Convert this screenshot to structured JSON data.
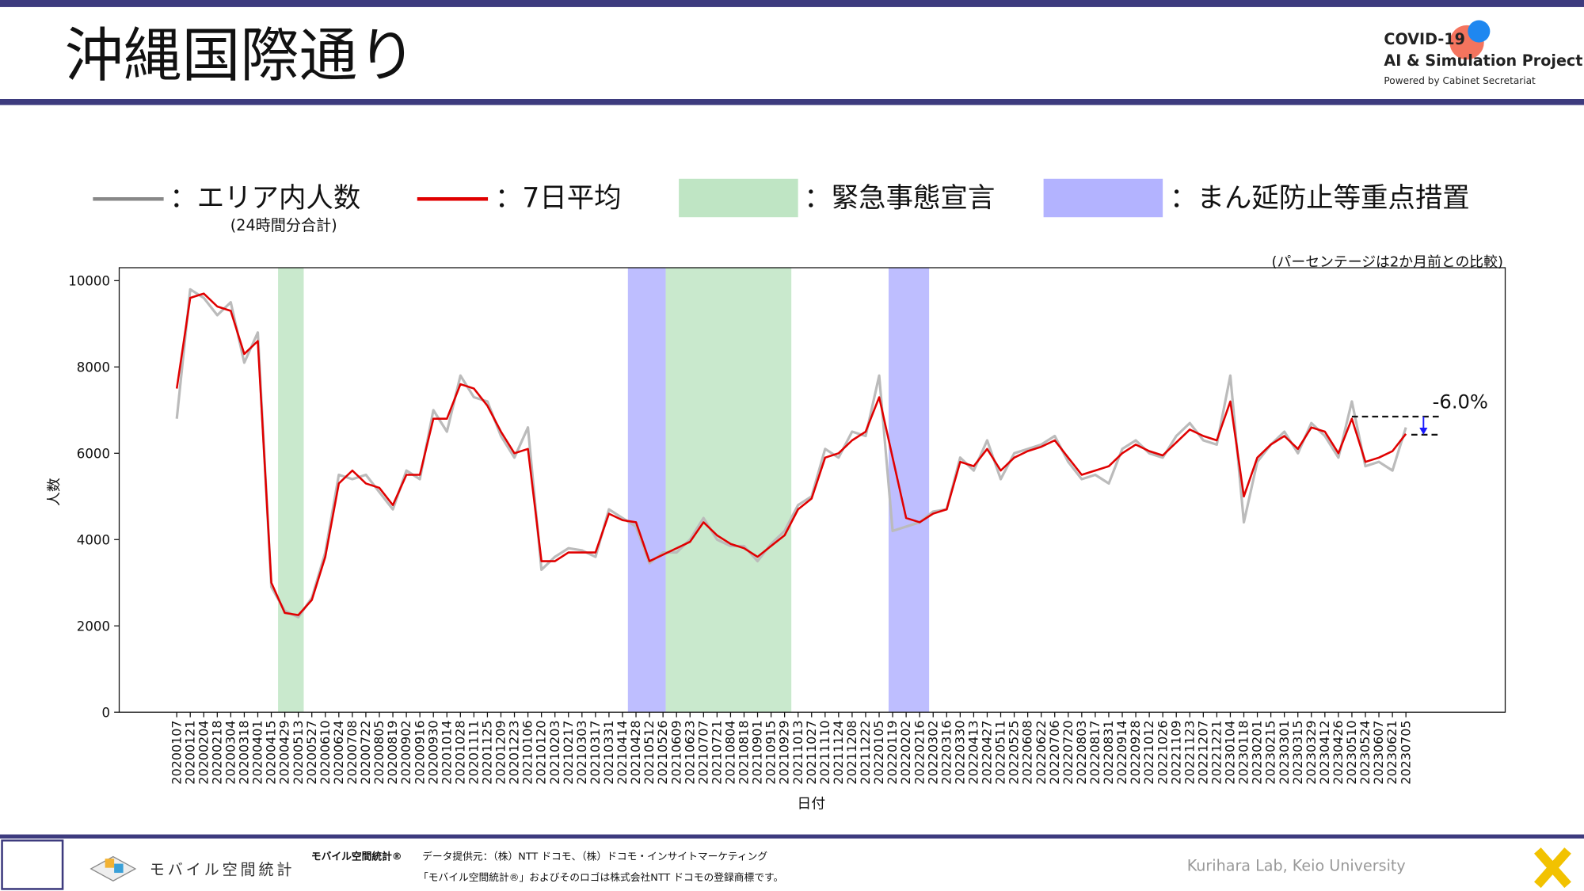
{
  "header": {
    "title": "沖縄国際通り",
    "logo": {
      "line1": "COVID-19",
      "line2": "AI & Simulation Project",
      "line3": "Powered by Cabinet Secretariat"
    }
  },
  "footer": {
    "brand": "モバイル空間統計",
    "brand_bold": "モバイル空間統計®",
    "source": "データ提供元：（株）NTT ドコモ、（株）ドコモ・インサイトマーケティング",
    "trademark": "「モバイル空間統計®」およびそのロゴは株式会社NTT ドコモの登録商標です。",
    "credit": "Kurihara Lab, Keio University"
  },
  "chart_data": {
    "type": "line",
    "note": "(パーセンテージは2か月前との比較)",
    "x_label": "日付",
    "y_label": "人数",
    "legend_sub": "(24時間分合計)",
    "categories": [
      "20200107",
      "20200121",
      "20200204",
      "20200218",
      "20200304",
      "20200318",
      "20200401",
      "20200415",
      "20200429",
      "20200513",
      "20200527",
      "20200610",
      "20200624",
      "20200708",
      "20200722",
      "20200805",
      "20200819",
      "20200902",
      "20200916",
      "20200930",
      "20201014",
      "20201028",
      "20201111",
      "20201125",
      "20201209",
      "20201223",
      "20210106",
      "20210120",
      "20210203",
      "20210217",
      "20210303",
      "20210317",
      "20210331",
      "20210414",
      "20210428",
      "20210512",
      "20210526",
      "20210609",
      "20210623",
      "20210707",
      "20210721",
      "20210804",
      "20210818",
      "20210901",
      "20210915",
      "20210929",
      "20211013",
      "20211027",
      "20211110",
      "20211124",
      "20211208",
      "20211222",
      "20220105",
      "20220119",
      "20220202",
      "20220216",
      "20220302",
      "20220316",
      "20220330",
      "20220413",
      "20220427",
      "20220511",
      "20220525",
      "20220608",
      "20220622",
      "20220706",
      "20220720",
      "20220803",
      "20220817",
      "20220831",
      "20220914",
      "20220928",
      "20221012",
      "20221026",
      "20221109",
      "20221123",
      "20221207",
      "20221221",
      "20230104",
      "20230118",
      "20230201",
      "20230215",
      "20230301",
      "20230315",
      "20230329",
      "20230412",
      "20230426",
      "20230510",
      "20230524",
      "20230607",
      "20230621",
      "20230705"
    ],
    "series": [
      {
        "name": "：エリア内人数",
        "color": "#bbbbbb",
        "legend_color": "#888888",
        "values": [
          6800,
          9800,
          9600,
          9200,
          9500,
          8100,
          8800,
          2900,
          2350,
          2200,
          2650,
          3700,
          5500,
          5400,
          5500,
          5100,
          4700,
          5600,
          5400,
          7000,
          6500,
          7800,
          7300,
          7200,
          6400,
          5900,
          6600,
          3300,
          3600,
          3800,
          3750,
          3600,
          4700,
          4500,
          4300,
          3450,
          3700,
          3700,
          4000,
          4500,
          4000,
          3850,
          3850,
          3500,
          3900,
          4200,
          4800,
          5000,
          6100,
          5900,
          6500,
          6400,
          7800,
          4200,
          4300,
          4400,
          4650,
          4700,
          5900,
          5600,
          6300,
          5400,
          6000,
          6100,
          6200,
          6400,
          5800,
          5400,
          5500,
          5300,
          6100,
          6300,
          6000,
          5900,
          6400,
          6700,
          6300,
          6200,
          7800,
          4400,
          5800,
          6200,
          6500,
          6000,
          6700,
          6400,
          5900,
          7200,
          5700,
          5800,
          5600,
          6600
        ]
      },
      {
        "name": "：7日平均",
        "color": "#e00000",
        "legend_color": "#e00000",
        "values": [
          7500,
          9600,
          9700,
          9400,
          9300,
          8300,
          8600,
          3000,
          2300,
          2250,
          2600,
          3600,
          5300,
          5600,
          5300,
          5200,
          4800,
          5500,
          5500,
          6800,
          6800,
          7600,
          7500,
          7100,
          6500,
          6000,
          6100,
          3500,
          3500,
          3700,
          3700,
          3700,
          4600,
          4450,
          4400,
          3500,
          3650,
          3800,
          3950,
          4400,
          4100,
          3900,
          3800,
          3600,
          3850,
          4100,
          4700,
          4950,
          5900,
          6000,
          6300,
          6500,
          7300,
          5900,
          4500,
          4400,
          4600,
          4700,
          5800,
          5700,
          6100,
          5600,
          5900,
          6050,
          6150,
          6300,
          5900,
          5500,
          5600,
          5700,
          6000,
          6200,
          6050,
          5950,
          6250,
          6550,
          6400,
          6300,
          7200,
          5000,
          5900,
          6200,
          6400,
          6100,
          6600,
          6500,
          6000,
          6800,
          5800,
          5900,
          6050,
          6450
        ]
      }
    ],
    "span_types": [
      {
        "name": "：緊急事態宣言",
        "color": "#bfe5c4"
      },
      {
        "name": "：まん延防止等重点措置",
        "color": "#b3b3ff"
      }
    ],
    "spans": [
      {
        "type": 0,
        "start": 7.5,
        "end": 9.4
      },
      {
        "type": 1,
        "start": 33.4,
        "end": 36.2
      },
      {
        "type": 0,
        "start": 36.2,
        "end": 45.5
      },
      {
        "type": 1,
        "start": 52.7,
        "end": 55.7
      }
    ],
    "annotation": {
      "text": "-6.0%",
      "from": 6850,
      "to": 6430
    },
    "xlim": [
      -4.26,
      98.35
    ],
    "ylim": [
      0,
      10300
    ],
    "yticks": [
      0,
      2000,
      4000,
      6000,
      8000,
      10000
    ]
  }
}
